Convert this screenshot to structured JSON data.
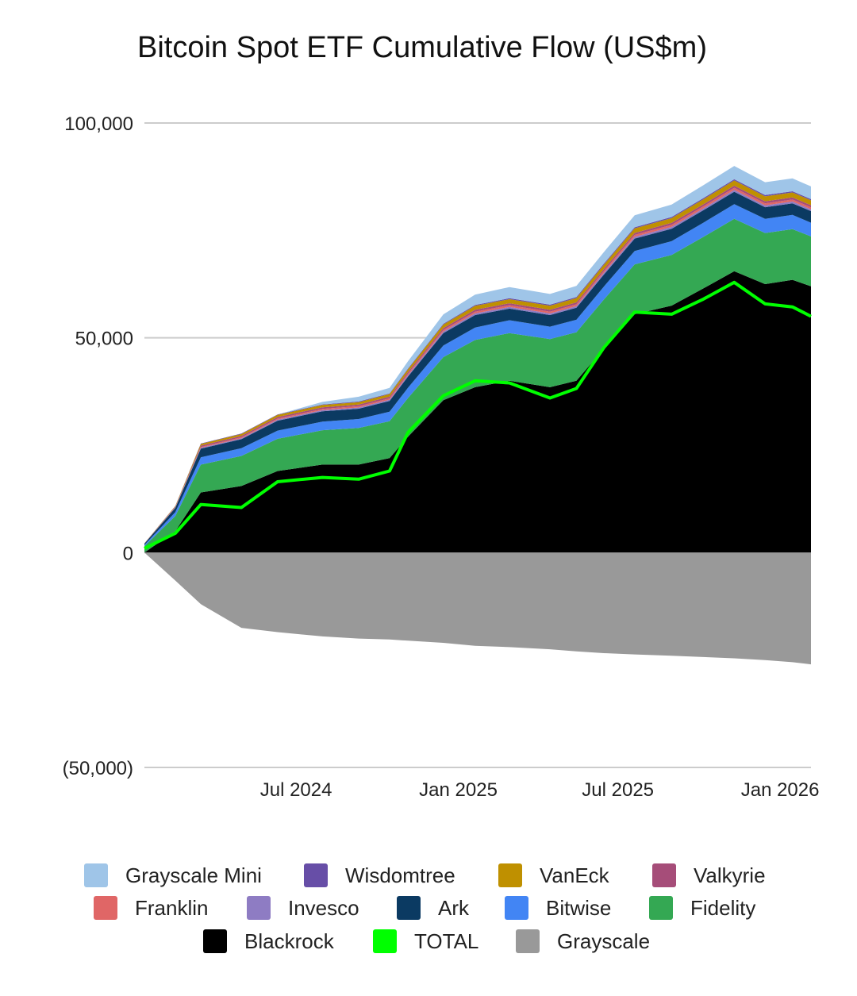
{
  "chart_data": {
    "type": "area",
    "title": "Bitcoin Spot ETF Cumulative Flow (US$m)",
    "xlabel": "",
    "ylabel": "",
    "ylim": [
      -50000,
      100000
    ],
    "y_ticks": [
      {
        "value": 100000,
        "label": "100,000"
      },
      {
        "value": 50000,
        "label": "50,000"
      },
      {
        "value": 0,
        "label": "0"
      },
      {
        "value": -50000,
        "label": "(50,000)"
      }
    ],
    "x_range": [
      "2024-01-11",
      "2026-02-05"
    ],
    "x_ticks": [
      {
        "date": "2024-07-01",
        "label": "Jul 2024"
      },
      {
        "date": "2025-01-01",
        "label": "Jan 2025"
      },
      {
        "date": "2025-07-01",
        "label": "Jul 2025"
      },
      {
        "date": "2026-01-01",
        "label": "Jan 2026"
      }
    ],
    "grid": true,
    "legend_position": "bottom",
    "x": [
      "2024-01-11",
      "2024-02-15",
      "2024-03-15",
      "2024-04-30",
      "2024-06-10",
      "2024-07-31",
      "2024-09-10",
      "2024-10-15",
      "2024-11-05",
      "2024-12-15",
      "2025-01-20",
      "2025-02-28",
      "2025-04-15",
      "2025-05-15",
      "2025-06-15",
      "2025-07-20",
      "2025-08-31",
      "2025-10-06",
      "2025-11-10",
      "2025-12-15",
      "2026-01-15",
      "2026-02-05"
    ],
    "series": [
      {
        "name": "Blackrock",
        "color": "#000000",
        "values": [
          0,
          5000,
          14000,
          15500,
          19000,
          20500,
          20500,
          22000,
          27000,
          35500,
          38500,
          40000,
          38500,
          40000,
          47500,
          55500,
          57500,
          61500,
          65500,
          62500,
          63500,
          62000
        ]
      },
      {
        "name": "Fidelity",
        "color": "#34a853",
        "values": [
          1500,
          3500,
          6500,
          7000,
          7500,
          8000,
          8500,
          8600,
          9000,
          10000,
          11000,
          11100,
          11200,
          11300,
          11400,
          11600,
          11800,
          12000,
          12200,
          11900,
          11800,
          11600
        ]
      },
      {
        "name": "Bitwise",
        "color": "#4285f4",
        "values": [
          300,
          900,
          1700,
          1800,
          1900,
          2000,
          2100,
          2200,
          2400,
          2700,
          2900,
          3000,
          2900,
          2900,
          3000,
          3100,
          3200,
          3300,
          3400,
          3300,
          3300,
          3200
        ]
      },
      {
        "name": "Ark",
        "color": "#0b3a62",
        "values": [
          300,
          1000,
          2000,
          2100,
          2300,
          2400,
          2400,
          2500,
          2600,
          2900,
          2900,
          2700,
          2700,
          2800,
          2800,
          2900,
          2900,
          2900,
          2900,
          2700,
          2700,
          2700
        ]
      },
      {
        "name": "Invesco",
        "color": "#8e7cc3",
        "values": [
          20,
          100,
          200,
          220,
          250,
          260,
          280,
          300,
          320,
          360,
          380,
          380,
          380,
          390,
          400,
          410,
          420,
          430,
          440,
          430,
          430,
          420
        ]
      },
      {
        "name": "Franklin",
        "color": "#e06666",
        "values": [
          20,
          80,
          200,
          220,
          250,
          280,
          300,
          320,
          340,
          380,
          400,
          410,
          410,
          420,
          430,
          440,
          460,
          470,
          480,
          470,
          470,
          460
        ]
      },
      {
        "name": "Valkyrie",
        "color": "#a64d79",
        "values": [
          20,
          100,
          300,
          320,
          350,
          370,
          380,
          390,
          400,
          430,
          450,
          450,
          440,
          450,
          460,
          470,
          480,
          490,
          500,
          490,
          490,
          480
        ]
      },
      {
        "name": "VanEck",
        "color": "#bf9000",
        "values": [
          20,
          150,
          400,
          450,
          500,
          550,
          580,
          600,
          650,
          800,
          900,
          950,
          950,
          980,
          1000,
          1050,
          1100,
          1150,
          1200,
          1150,
          1150,
          1150
        ]
      },
      {
        "name": "Wisdomtree",
        "color": "#674ea7",
        "values": [
          5,
          30,
          100,
          110,
          120,
          130,
          140,
          150,
          160,
          200,
          220,
          230,
          230,
          240,
          250,
          260,
          270,
          280,
          290,
          280,
          280,
          280
        ]
      },
      {
        "name": "Grayscale Mini",
        "color": "#9fc5e8",
        "values": [
          0,
          0,
          0,
          0,
          0,
          600,
          1100,
          1300,
          1700,
          2200,
          2400,
          2600,
          2500,
          2600,
          2700,
          2800,
          2900,
          3000,
          3100,
          3000,
          3000,
          2950
        ]
      },
      {
        "name": "Grayscale",
        "color": "#999999",
        "values": [
          0,
          -6500,
          -12000,
          -17500,
          -18500,
          -19500,
          -20000,
          -20200,
          -20500,
          -21000,
          -21700,
          -22000,
          -22500,
          -23000,
          -23400,
          -23700,
          -24000,
          -24300,
          -24600,
          -25000,
          -25500,
          -26000
        ]
      },
      {
        "name": "TOTAL",
        "color": "#00ff00",
        "values": [
          1000,
          4500,
          11200,
          10500,
          16500,
          17500,
          17100,
          19000,
          28000,
          36500,
          40000,
          39500,
          36000,
          38200,
          47700,
          56000,
          55500,
          59000,
          62900,
          57900,
          57200,
          55000
        ]
      }
    ],
    "legend": [
      {
        "name": "Grayscale Mini",
        "color": "#9fc5e8"
      },
      {
        "name": "Wisdomtree",
        "color": "#674ea7"
      },
      {
        "name": "VanEck",
        "color": "#bf9000"
      },
      {
        "name": "Valkyrie",
        "color": "#a64d79"
      },
      {
        "name": "Franklin",
        "color": "#e06666"
      },
      {
        "name": "Invesco",
        "color": "#8e7cc3"
      },
      {
        "name": "Ark",
        "color": "#0b3a62"
      },
      {
        "name": "Bitwise",
        "color": "#4285f4"
      },
      {
        "name": "Fidelity",
        "color": "#34a853"
      },
      {
        "name": "Blackrock",
        "color": "#000000"
      },
      {
        "name": "TOTAL",
        "color": "#00ff00"
      },
      {
        "name": "Grayscale",
        "color": "#999999"
      }
    ]
  }
}
